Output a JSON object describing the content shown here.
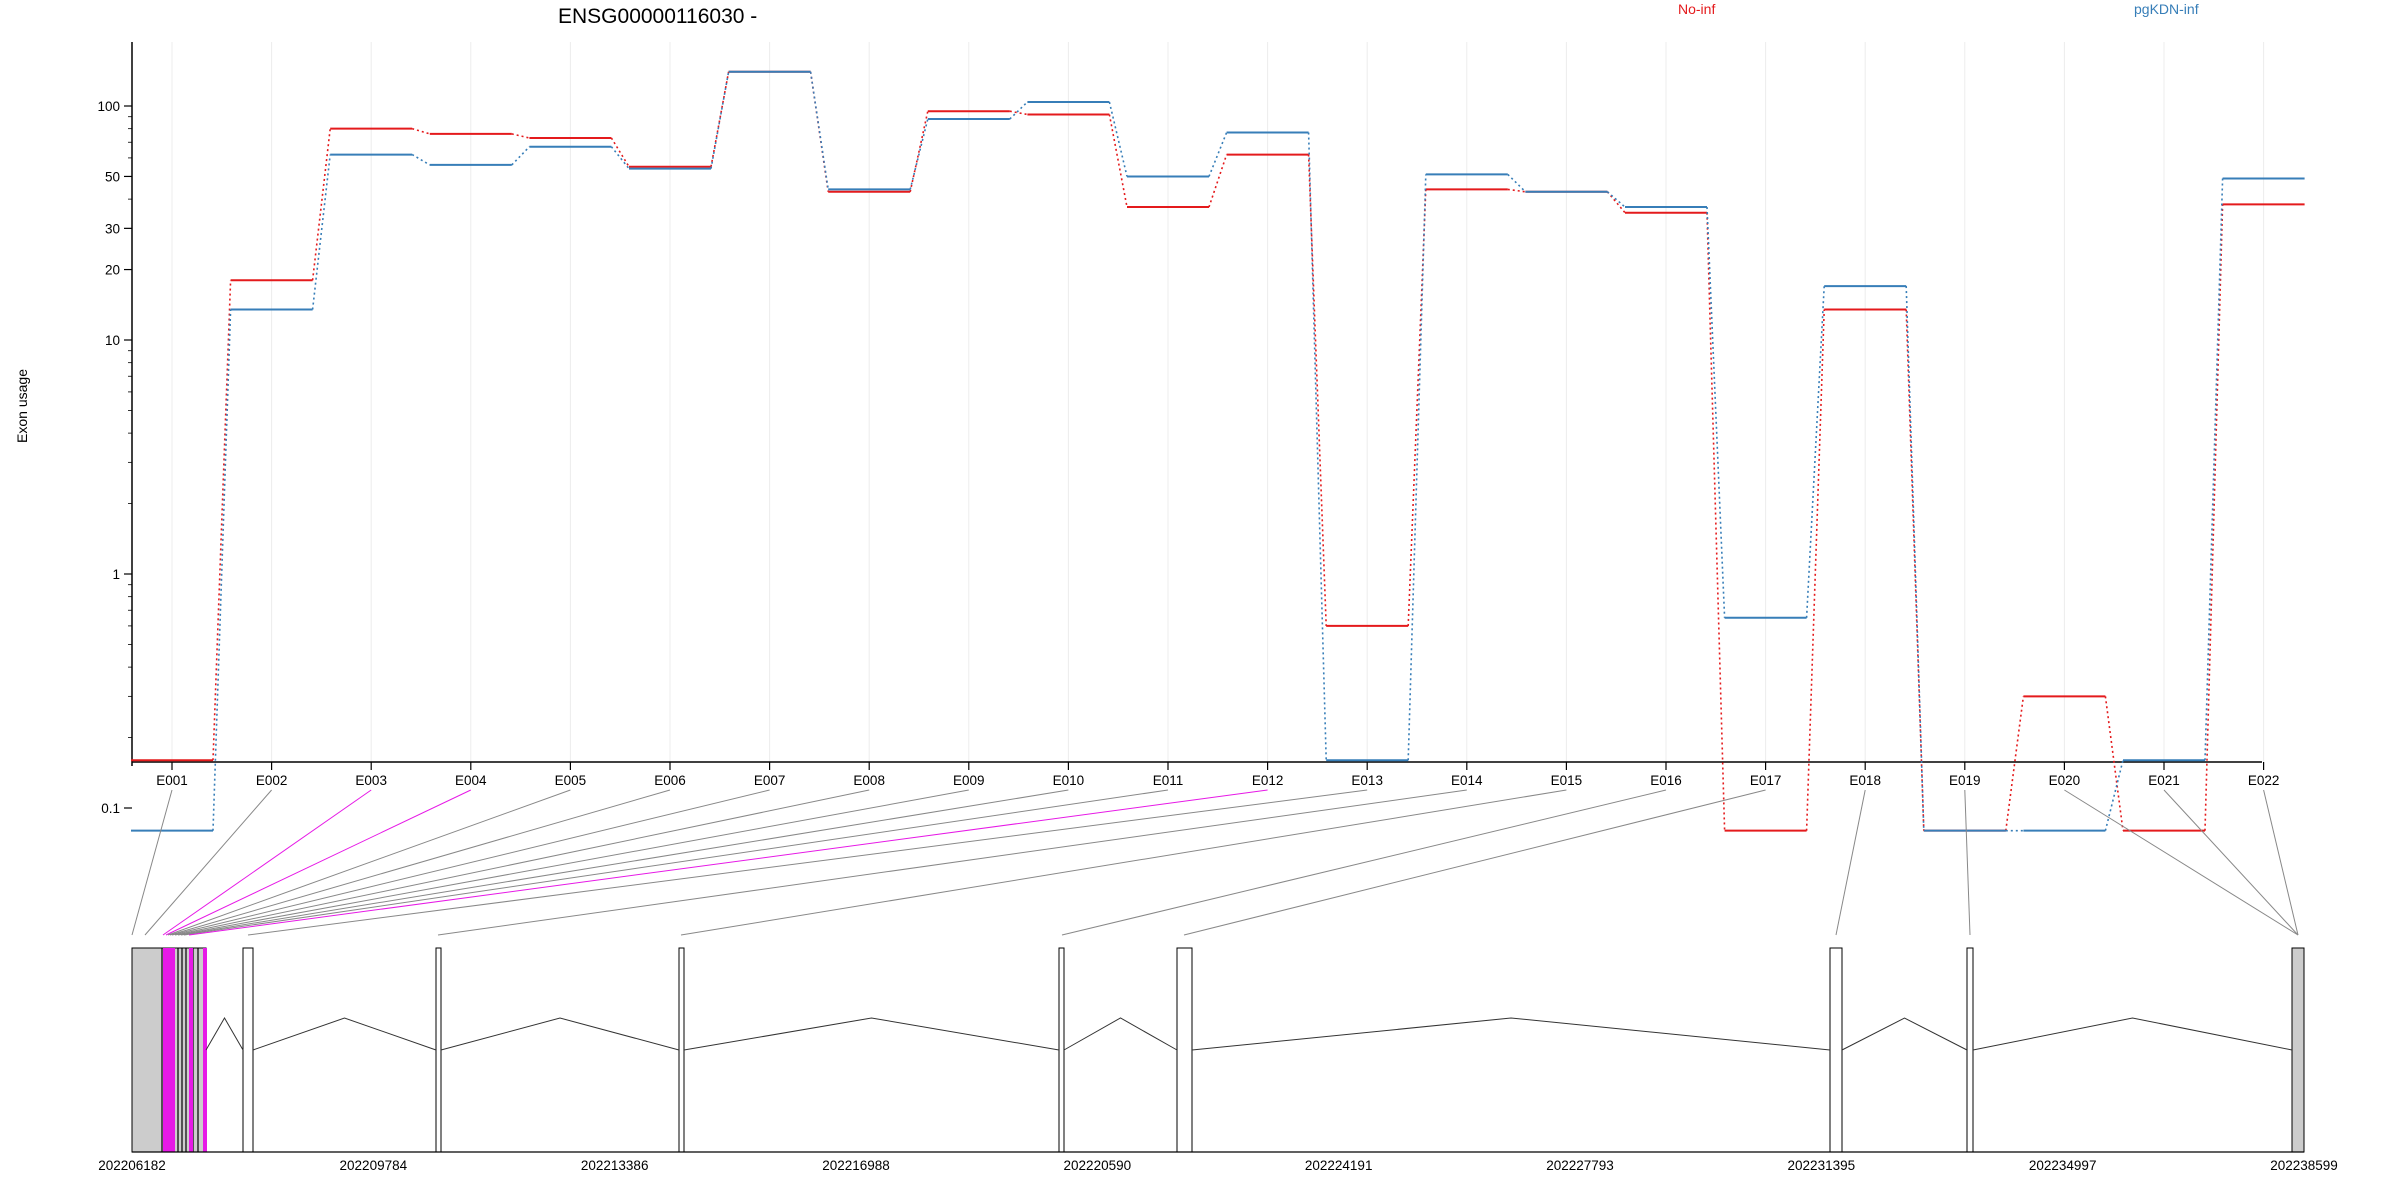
{
  "chart_data": {
    "type": "line",
    "title": "ENSG00000116030 -",
    "ylabel": "Exon usage",
    "xlabel": "",
    "y_scale": "log",
    "ylim": [
      0.08,
      150
    ],
    "grid": "vertical",
    "legend_placement": "top",
    "y_ticks": [
      0.1,
      1,
      10,
      20,
      30,
      50,
      100
    ],
    "y_tick_labels": [
      "0.1",
      "1",
      "10",
      "20",
      "30",
      "50",
      "100"
    ],
    "categories": [
      "E001",
      "E002",
      "E003",
      "E004",
      "E005",
      "E006",
      "E007",
      "E008",
      "E009",
      "E010",
      "E011",
      "E012",
      "E013",
      "E014",
      "E015",
      "E016",
      "E017",
      "E018",
      "E019",
      "E020",
      "E021",
      "E022"
    ],
    "series": [
      {
        "name": "No-inf",
        "color": "#e41a1c",
        "values": [
          0.16,
          18,
          80,
          76,
          73,
          55,
          140,
          43,
          95,
          92,
          37,
          62,
          0.6,
          44,
          43,
          35,
          0.08,
          13.5,
          0.08,
          0.3,
          0.08,
          38
        ]
      },
      {
        "name": "pgKDN-inf",
        "color": "#377eb8",
        "values": [
          0.08,
          13.5,
          62,
          56,
          67,
          54,
          140,
          44,
          88,
          104,
          50,
          77,
          0.16,
          51,
          43,
          37,
          0.65,
          17,
          0.08,
          0.08,
          0.16,
          49
        ]
      }
    ],
    "gene_model": {
      "start": "202206182",
      "end": "202238599",
      "coordinate_ticks": [
        "202206182",
        "202209784",
        "202213386",
        "202216988",
        "202220590",
        "202224191",
        "202227793",
        "202231395",
        "202234997",
        "202238599"
      ],
      "highlight_color": "#e619e6",
      "exon_fill_color": "#cccccc"
    }
  }
}
